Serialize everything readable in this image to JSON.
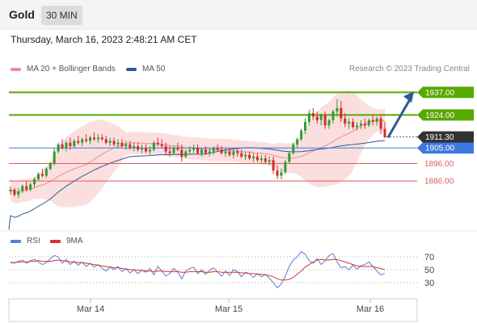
{
  "header": {
    "instrument": "Gold",
    "timeframe": "30 MIN"
  },
  "timestamp": "Thursday, March 16, 2023 2:48:21 AM CET",
  "legend": {
    "bollinger": {
      "label": "MA 20 + Bollinger Bands",
      "color": "#f08c8c"
    },
    "ma50": {
      "label": "MA 50",
      "color": "#2c5a96"
    }
  },
  "credit": "Research © 2023 Trading Central",
  "rsi_legend": {
    "rsi": {
      "label": "RSI",
      "color": "#5b7fd6"
    },
    "ma9": {
      "label": "9MA",
      "color": "#d63232"
    }
  },
  "colors": {
    "resistance": "#58a800",
    "pivot": "#3d78e0",
    "support": "#e05a5a",
    "current": "#333333",
    "arrow": "#2c5a96"
  },
  "chart_data": [
    {
      "type": "candlestick",
      "x_ticks": [
        "Mar 14",
        "Mar 15",
        "Mar 16"
      ],
      "levels": [
        {
          "value": 1937.0,
          "label": "1937.00",
          "kind": "resistance"
        },
        {
          "value": 1924.0,
          "label": "1924.00",
          "kind": "resistance"
        },
        {
          "value": 1905.0,
          "label": "1905.00",
          "kind": "pivot"
        },
        {
          "value": 1896.0,
          "label": "1896.00",
          "kind": "support"
        },
        {
          "value": 1886.0,
          "label": "1886.00",
          "kind": "support"
        }
      ],
      "current_price": {
        "value": 1911.3,
        "label": "1911.30"
      },
      "ohlc": [
        [
          1880,
          1883,
          1878,
          1881
        ],
        [
          1881,
          1882,
          1877,
          1878
        ],
        [
          1878,
          1882,
          1876,
          1880
        ],
        [
          1880,
          1884,
          1879,
          1883
        ],
        [
          1883,
          1886,
          1880,
          1881
        ],
        [
          1881,
          1885,
          1880,
          1884
        ],
        [
          1884,
          1888,
          1882,
          1887
        ],
        [
          1887,
          1891,
          1886,
          1890
        ],
        [
          1890,
          1893,
          1888,
          1889
        ],
        [
          1889,
          1894,
          1888,
          1893
        ],
        [
          1893,
          1897,
          1892,
          1896
        ],
        [
          1896,
          1905,
          1895,
          1903
        ],
        [
          1903,
          1908,
          1902,
          1907
        ],
        [
          1907,
          1910,
          1904,
          1905
        ],
        [
          1905,
          1909,
          1903,
          1908
        ],
        [
          1908,
          1911,
          1904,
          1906
        ],
        [
          1906,
          1910,
          1905,
          1909
        ],
        [
          1909,
          1912,
          1907,
          1908
        ],
        [
          1908,
          1911,
          1906,
          1910
        ],
        [
          1910,
          1913,
          1908,
          1909
        ],
        [
          1909,
          1912,
          1907,
          1911
        ],
        [
          1911,
          1914,
          1909,
          1910
        ],
        [
          1910,
          1913,
          1908,
          1911
        ],
        [
          1911,
          1913,
          1909,
          1910
        ],
        [
          1910,
          1912,
          1907,
          1908
        ],
        [
          1908,
          1911,
          1906,
          1909
        ],
        [
          1909,
          1911,
          1906,
          1907
        ],
        [
          1907,
          1910,
          1905,
          1908
        ],
        [
          1908,
          1910,
          1905,
          1906
        ],
        [
          1906,
          1909,
          1904,
          1907
        ],
        [
          1907,
          1909,
          1904,
          1905
        ],
        [
          1905,
          1908,
          1903,
          1906
        ],
        [
          1906,
          1908,
          1903,
          1904
        ],
        [
          1904,
          1907,
          1902,
          1905
        ],
        [
          1905,
          1907,
          1902,
          1903
        ],
        [
          1903,
          1906,
          1901,
          1904
        ],
        [
          1904,
          1909,
          1903,
          1908
        ],
        [
          1908,
          1911,
          1906,
          1907
        ],
        [
          1907,
          1910,
          1905,
          1906
        ],
        [
          1906,
          1908,
          1901,
          1903
        ],
        [
          1903,
          1906,
          1900,
          1902
        ],
        [
          1902,
          1906,
          1901,
          1905
        ],
        [
          1905,
          1908,
          1903,
          1904
        ],
        [
          1904,
          1907,
          1897,
          1900
        ],
        [
          1900,
          1904,
          1899,
          1903
        ],
        [
          1903,
          1906,
          1901,
          1904
        ],
        [
          1904,
          1907,
          1902,
          1905
        ],
        [
          1905,
          1907,
          1901,
          1902
        ],
        [
          1902,
          1905,
          1900,
          1904
        ],
        [
          1904,
          1906,
          1901,
          1902
        ],
        [
          1902,
          1905,
          1900,
          1903
        ],
        [
          1903,
          1906,
          1901,
          1905
        ],
        [
          1905,
          1907,
          1903,
          1904
        ],
        [
          1904,
          1906,
          1901,
          1902
        ],
        [
          1902,
          1905,
          1900,
          1903
        ],
        [
          1903,
          1905,
          1900,
          1901
        ],
        [
          1901,
          1904,
          1899,
          1903
        ],
        [
          1903,
          1905,
          1900,
          1902
        ],
        [
          1902,
          1904,
          1899,
          1900
        ],
        [
          1900,
          1903,
          1898,
          1901
        ],
        [
          1901,
          1903,
          1898,
          1899
        ],
        [
          1899,
          1902,
          1897,
          1900
        ],
        [
          1900,
          1902,
          1897,
          1898
        ],
        [
          1898,
          1901,
          1896,
          1899
        ],
        [
          1899,
          1901,
          1896,
          1897
        ],
        [
          1897,
          1900,
          1895,
          1898
        ],
        [
          1898,
          1900,
          1890,
          1892
        ],
        [
          1892,
          1895,
          1887,
          1889
        ],
        [
          1889,
          1893,
          1887,
          1891
        ],
        [
          1891,
          1898,
          1890,
          1897
        ],
        [
          1897,
          1903,
          1896,
          1902
        ],
        [
          1902,
          1908,
          1901,
          1907
        ],
        [
          1907,
          1911,
          1905,
          1910
        ],
        [
          1910,
          1916,
          1909,
          1915
        ],
        [
          1915,
          1922,
          1913,
          1920
        ],
        [
          1920,
          1927,
          1918,
          1925
        ],
        [
          1925,
          1928,
          1921,
          1923
        ],
        [
          1923,
          1926,
          1919,
          1921
        ],
        [
          1921,
          1925,
          1918,
          1924
        ],
        [
          1924,
          1926,
          1916,
          1918
        ],
        [
          1918,
          1922,
          1916,
          1921
        ],
        [
          1921,
          1927,
          1919,
          1926
        ],
        [
          1926,
          1933,
          1923,
          1928
        ],
        [
          1928,
          1932,
          1920,
          1922
        ],
        [
          1922,
          1925,
          1917,
          1919
        ],
        [
          1919,
          1922,
          1916,
          1920
        ],
        [
          1920,
          1922,
          1916,
          1917
        ],
        [
          1917,
          1920,
          1915,
          1918
        ],
        [
          1918,
          1921,
          1916,
          1919
        ],
        [
          1919,
          1922,
          1916,
          1918
        ],
        [
          1918,
          1922,
          1917,
          1921
        ],
        [
          1921,
          1924,
          1918,
          1920
        ],
        [
          1920,
          1923,
          1918,
          1922
        ],
        [
          1922,
          1924,
          1913,
          1916
        ],
        [
          1916,
          1920,
          1911,
          1911
        ]
      ]
    },
    {
      "type": "line",
      "name": "RSI",
      "y_ticks": [
        70,
        50,
        30
      ],
      "ylim": [
        10,
        85
      ],
      "series": [
        {
          "name": "RSI",
          "values": [
            62,
            60,
            63,
            65,
            60,
            64,
            66,
            62,
            58,
            61,
            67,
            72,
            70,
            60,
            66,
            58,
            63,
            57,
            62,
            55,
            60,
            54,
            58,
            52,
            48,
            54,
            50,
            55,
            47,
            52,
            45,
            50,
            44,
            49,
            46,
            52,
            42,
            55,
            48,
            40,
            44,
            52,
            46,
            36,
            48,
            52,
            54,
            44,
            50,
            43,
            49,
            53,
            46,
            40,
            48,
            41,
            50,
            47,
            39,
            46,
            44,
            38,
            44,
            39,
            43,
            37,
            30,
            22,
            28,
            40,
            55,
            65,
            70,
            78,
            74,
            64,
            60,
            67,
            58,
            64,
            72,
            75,
            62,
            53,
            55,
            50,
            57,
            51,
            56,
            58,
            62,
            55,
            48,
            42,
            44
          ]
        },
        {
          "name": "9MA",
          "values": [
            61,
            61,
            62,
            62,
            62,
            63,
            63,
            64,
            63,
            63,
            63,
            64,
            65,
            64,
            63,
            62,
            62,
            61,
            61,
            60,
            59,
            58,
            57,
            56,
            55,
            54,
            53,
            53,
            52,
            51,
            50,
            50,
            49,
            49,
            48,
            48,
            47,
            48,
            48,
            47,
            47,
            47,
            47,
            46,
            46,
            47,
            47,
            47,
            47,
            46,
            46,
            47,
            47,
            46,
            46,
            46,
            46,
            46,
            45,
            45,
            44,
            44,
            43,
            43,
            42,
            41,
            39,
            36,
            34,
            34,
            35,
            38,
            43,
            48,
            54,
            58,
            62,
            65,
            66,
            65,
            65,
            66,
            66,
            64,
            62,
            60,
            58,
            56,
            55,
            55,
            55,
            55,
            53,
            52,
            50
          ]
        }
      ]
    }
  ]
}
